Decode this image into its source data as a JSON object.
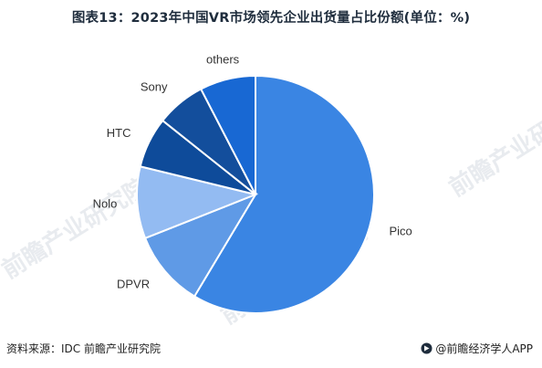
{
  "title": "图表13：2023年中国VR市场领先企业出货量占比份额(单位：%)",
  "footer": {
    "source": "资料来源：IDC 前瞻产业研究院",
    "brand": "@前瞻经济学人APP"
  },
  "watermark": "前瞻产业研究院",
  "colors": {
    "Pico": "#3a85e3",
    "DPVR": "#5f9ae6",
    "Nolo": "#93bbf2",
    "HTC": "#0e4b9a",
    "Sony": "#134e9c",
    "others": "#1868d3"
  },
  "chart_data": {
    "type": "pie",
    "title": "图表13：2023年中国VR市场领先企业出货量占比份额(单位：%)",
    "start_angle_deg": 0,
    "direction": "clockwise",
    "slices": [
      {
        "label": "Pico",
        "value": 58.6
      },
      {
        "label": "DPVR",
        "value": 10.4
      },
      {
        "label": "Nolo",
        "value": 9.8
      },
      {
        "label": "HTC",
        "value": 6.9
      },
      {
        "label": "Sony",
        "value": 6.7
      },
      {
        "label": "others",
        "value": 7.6
      }
    ]
  }
}
